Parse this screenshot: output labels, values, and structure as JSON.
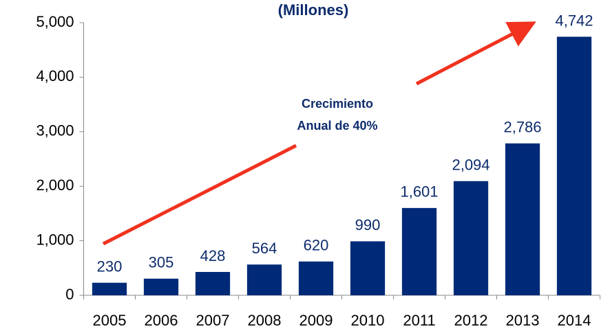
{
  "chart_data": {
    "type": "bar",
    "title": "(Millones)",
    "annotation": [
      "Crecimiento",
      "Anual de 40%"
    ],
    "categories": [
      "2005",
      "2006",
      "2007",
      "2008",
      "2009",
      "2010",
      "2011",
      "2012",
      "2013",
      "2014"
    ],
    "values": [
      230,
      305,
      428,
      564,
      620,
      990,
      1601,
      2094,
      2786,
      4742
    ],
    "value_labels": [
      "230",
      "305",
      "428",
      "564",
      "620",
      "990",
      "1,601",
      "2,094",
      "2,786",
      "4,742"
    ],
    "color": "#002a78",
    "ylim": [
      0,
      5000
    ],
    "yticks": [
      0,
      {
        "value": 1000,
        "label": "1,000"
      },
      {
        "value": 2000,
        "label": "2,000"
      },
      {
        "value": 3000,
        "label": "3,000"
      },
      {
        "value": 4000,
        "label": "4,000"
      },
      {
        "value": 5000,
        "label": "5,000"
      }
    ],
    "grid": false
  }
}
